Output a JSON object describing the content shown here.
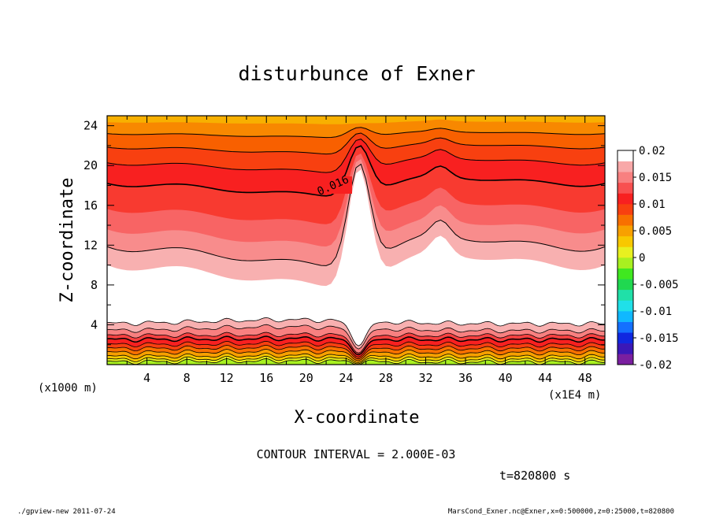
{
  "chart_data": {
    "type": "contour",
    "title": "disturbunce of Exner",
    "xlabel": "X-coordinate",
    "ylabel": "Z-coordinate",
    "x_unit_left": "(x1000 m)",
    "x_unit_right": "(x1E4 m)",
    "xlim": [
      0,
      50
    ],
    "ylim": [
      0,
      25
    ],
    "x_ticks": [
      "4",
      "8",
      "12",
      "16",
      "20",
      "24",
      "28",
      "32",
      "36",
      "40",
      "44",
      "48"
    ],
    "y_ticks": [
      "4",
      "8",
      "12",
      "16",
      "20",
      "24"
    ],
    "contour_label": "0.016",
    "contour_interval_text": "CONTOUR INTERVAL = 2.000E-03",
    "time_text": "t=820800 s",
    "colorbar": {
      "labels": [
        "0.02",
        "0.015",
        "0.01",
        "0.005",
        "0",
        "-0.005",
        "-0.01",
        "-0.015",
        "-0.02"
      ],
      "range": [
        -0.02,
        0.02
      ],
      "colors": [
        "#7a1fa0",
        "#3a18b8",
        "#1028e0",
        "#1470ff",
        "#10b8ff",
        "#20e0e8",
        "#20e0a8",
        "#20d850",
        "#40e820",
        "#a8f020",
        "#e8f020",
        "#f8c800",
        "#f8a000",
        "#f87000",
        "#f84010",
        "#f82020",
        "#f85050",
        "#f88080",
        "#f8a8a8",
        "#ffffff"
      ]
    }
  },
  "footer": {
    "left": "./gpview-new 2011-07-24",
    "right": "MarsCond_Exner.nc@Exner,x=0:500000,z=0:25000,t=820800"
  }
}
